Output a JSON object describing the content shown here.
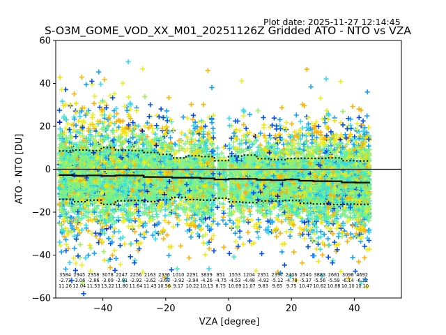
{
  "plot_date": "Plot date: 2025-11-27 12:14:45",
  "chart_data": {
    "type": "scatter",
    "title": "S-O3M_GOME_VOD_XX_M01_20251126Z Gridded ATO - NTO vs VZA",
    "xlabel": "VZA [degree]",
    "ylabel": "ATO - NTO [DU]",
    "xlim": [
      -55,
      55
    ],
    "ylim": [
      -60,
      60
    ],
    "xticks": [
      -40,
      -20,
      0,
      20,
      40
    ],
    "yticks": [
      -60,
      -40,
      -20,
      0,
      20,
      40,
      60
    ],
    "xtick_labels": [
      "−40",
      "−20",
      "0",
      "20",
      "40"
    ],
    "ytick_labels": [
      "−60",
      "−40",
      "−20",
      "0",
      "20",
      "40",
      "60"
    ],
    "grid": false,
    "zero_line": 0,
    "marker": "+",
    "marker_colors": [
      "#80f080",
      "#40e8c8",
      "#30d8f0",
      "#e8f020",
      "#f8e000",
      "#ffb000",
      "#10a0ff",
      "#0050f0",
      "#0020d0",
      "#a0f060"
    ],
    "bins": {
      "edges_start": -54,
      "width": 4.5,
      "count": [
        3584,
        2945,
        2358,
        3078,
        2247,
        2256,
        2163,
        2336,
        1010,
        2291,
        3839,
        851,
        1553,
        1204,
        2351,
        2397,
        2406,
        2540,
        3883,
        2681,
        3098,
        4692
      ],
      "mean": [
        -2.73,
        -3.06,
        -2.86,
        -3.09,
        -2.91,
        -2.92,
        -3.62,
        -3.63,
        -3.92,
        -3.94,
        -4.26,
        -4.75,
        -4.53,
        -4.48,
        -4.92,
        -5.12,
        -4.78,
        -5.37,
        -5.56,
        -5.59,
        -6.14,
        -6.22
      ],
      "std": [
        11.26,
        12.04,
        11.53,
        13.22,
        11.8,
        11.64,
        11.43,
        10.56,
        9.17,
        10.22,
        10.13,
        8.75,
        10.69,
        11.07,
        9.83,
        9.65,
        9.75,
        10.47,
        10.62,
        10.88,
        10.1,
        10.1
      ],
      "centers": [
        -52,
        -47.5,
        -43,
        -38.5,
        -34,
        -29.5,
        -25,
        -20.5,
        -16,
        -11.5,
        -7,
        -2.5,
        2,
        6.5,
        11,
        15.5,
        20,
        24.5,
        29,
        33.5,
        38,
        42.5
      ]
    },
    "series": [
      {
        "name": "mean",
        "style": "solid",
        "color": "#000000"
      },
      {
        "name": "mean + std",
        "style": "dotted",
        "color": "#000000"
      },
      {
        "name": "mean - std",
        "style": "dotted",
        "color": "#000000"
      }
    ]
  }
}
